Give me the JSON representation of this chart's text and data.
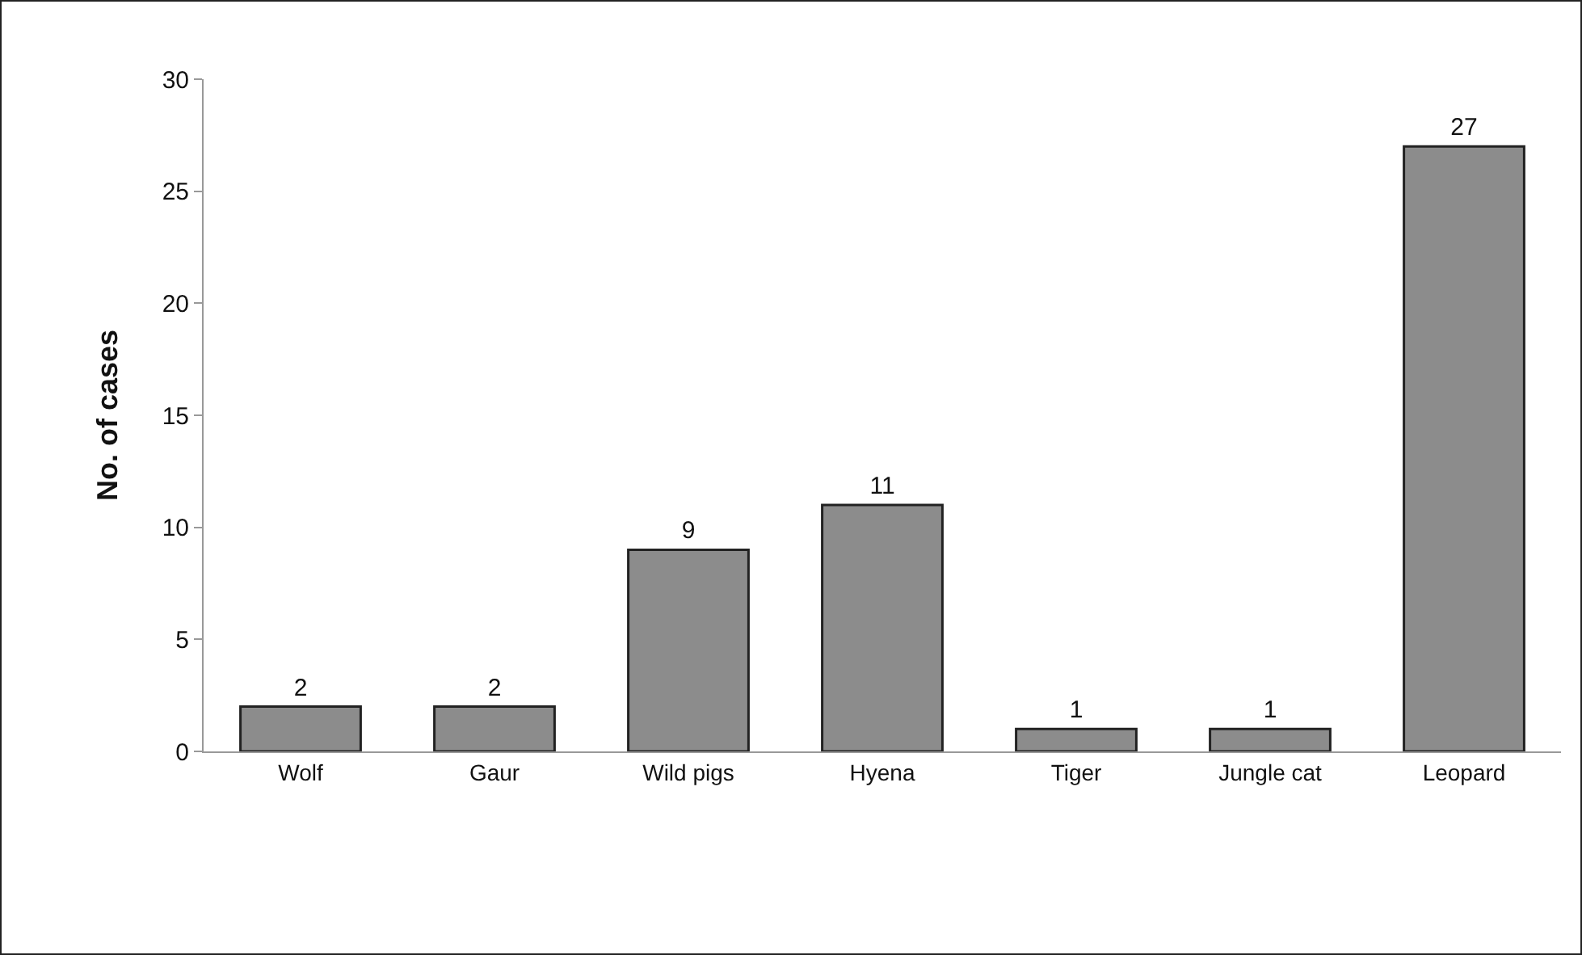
{
  "chart_data": {
    "type": "bar",
    "ylabel": "No. of cases",
    "categories": [
      "Wolf",
      "Gaur",
      "Wild pigs",
      "Hyena",
      "Tiger",
      "Jungle cat",
      "Leopard"
    ],
    "values": [
      2,
      2,
      9,
      11,
      1,
      1,
      27
    ],
    "color": "#8c8c8c",
    "ylim": [
      0,
      30
    ],
    "yticks": [
      0,
      5,
      10,
      15,
      20,
      25,
      30
    ],
    "grid": false,
    "data_labels": true
  }
}
